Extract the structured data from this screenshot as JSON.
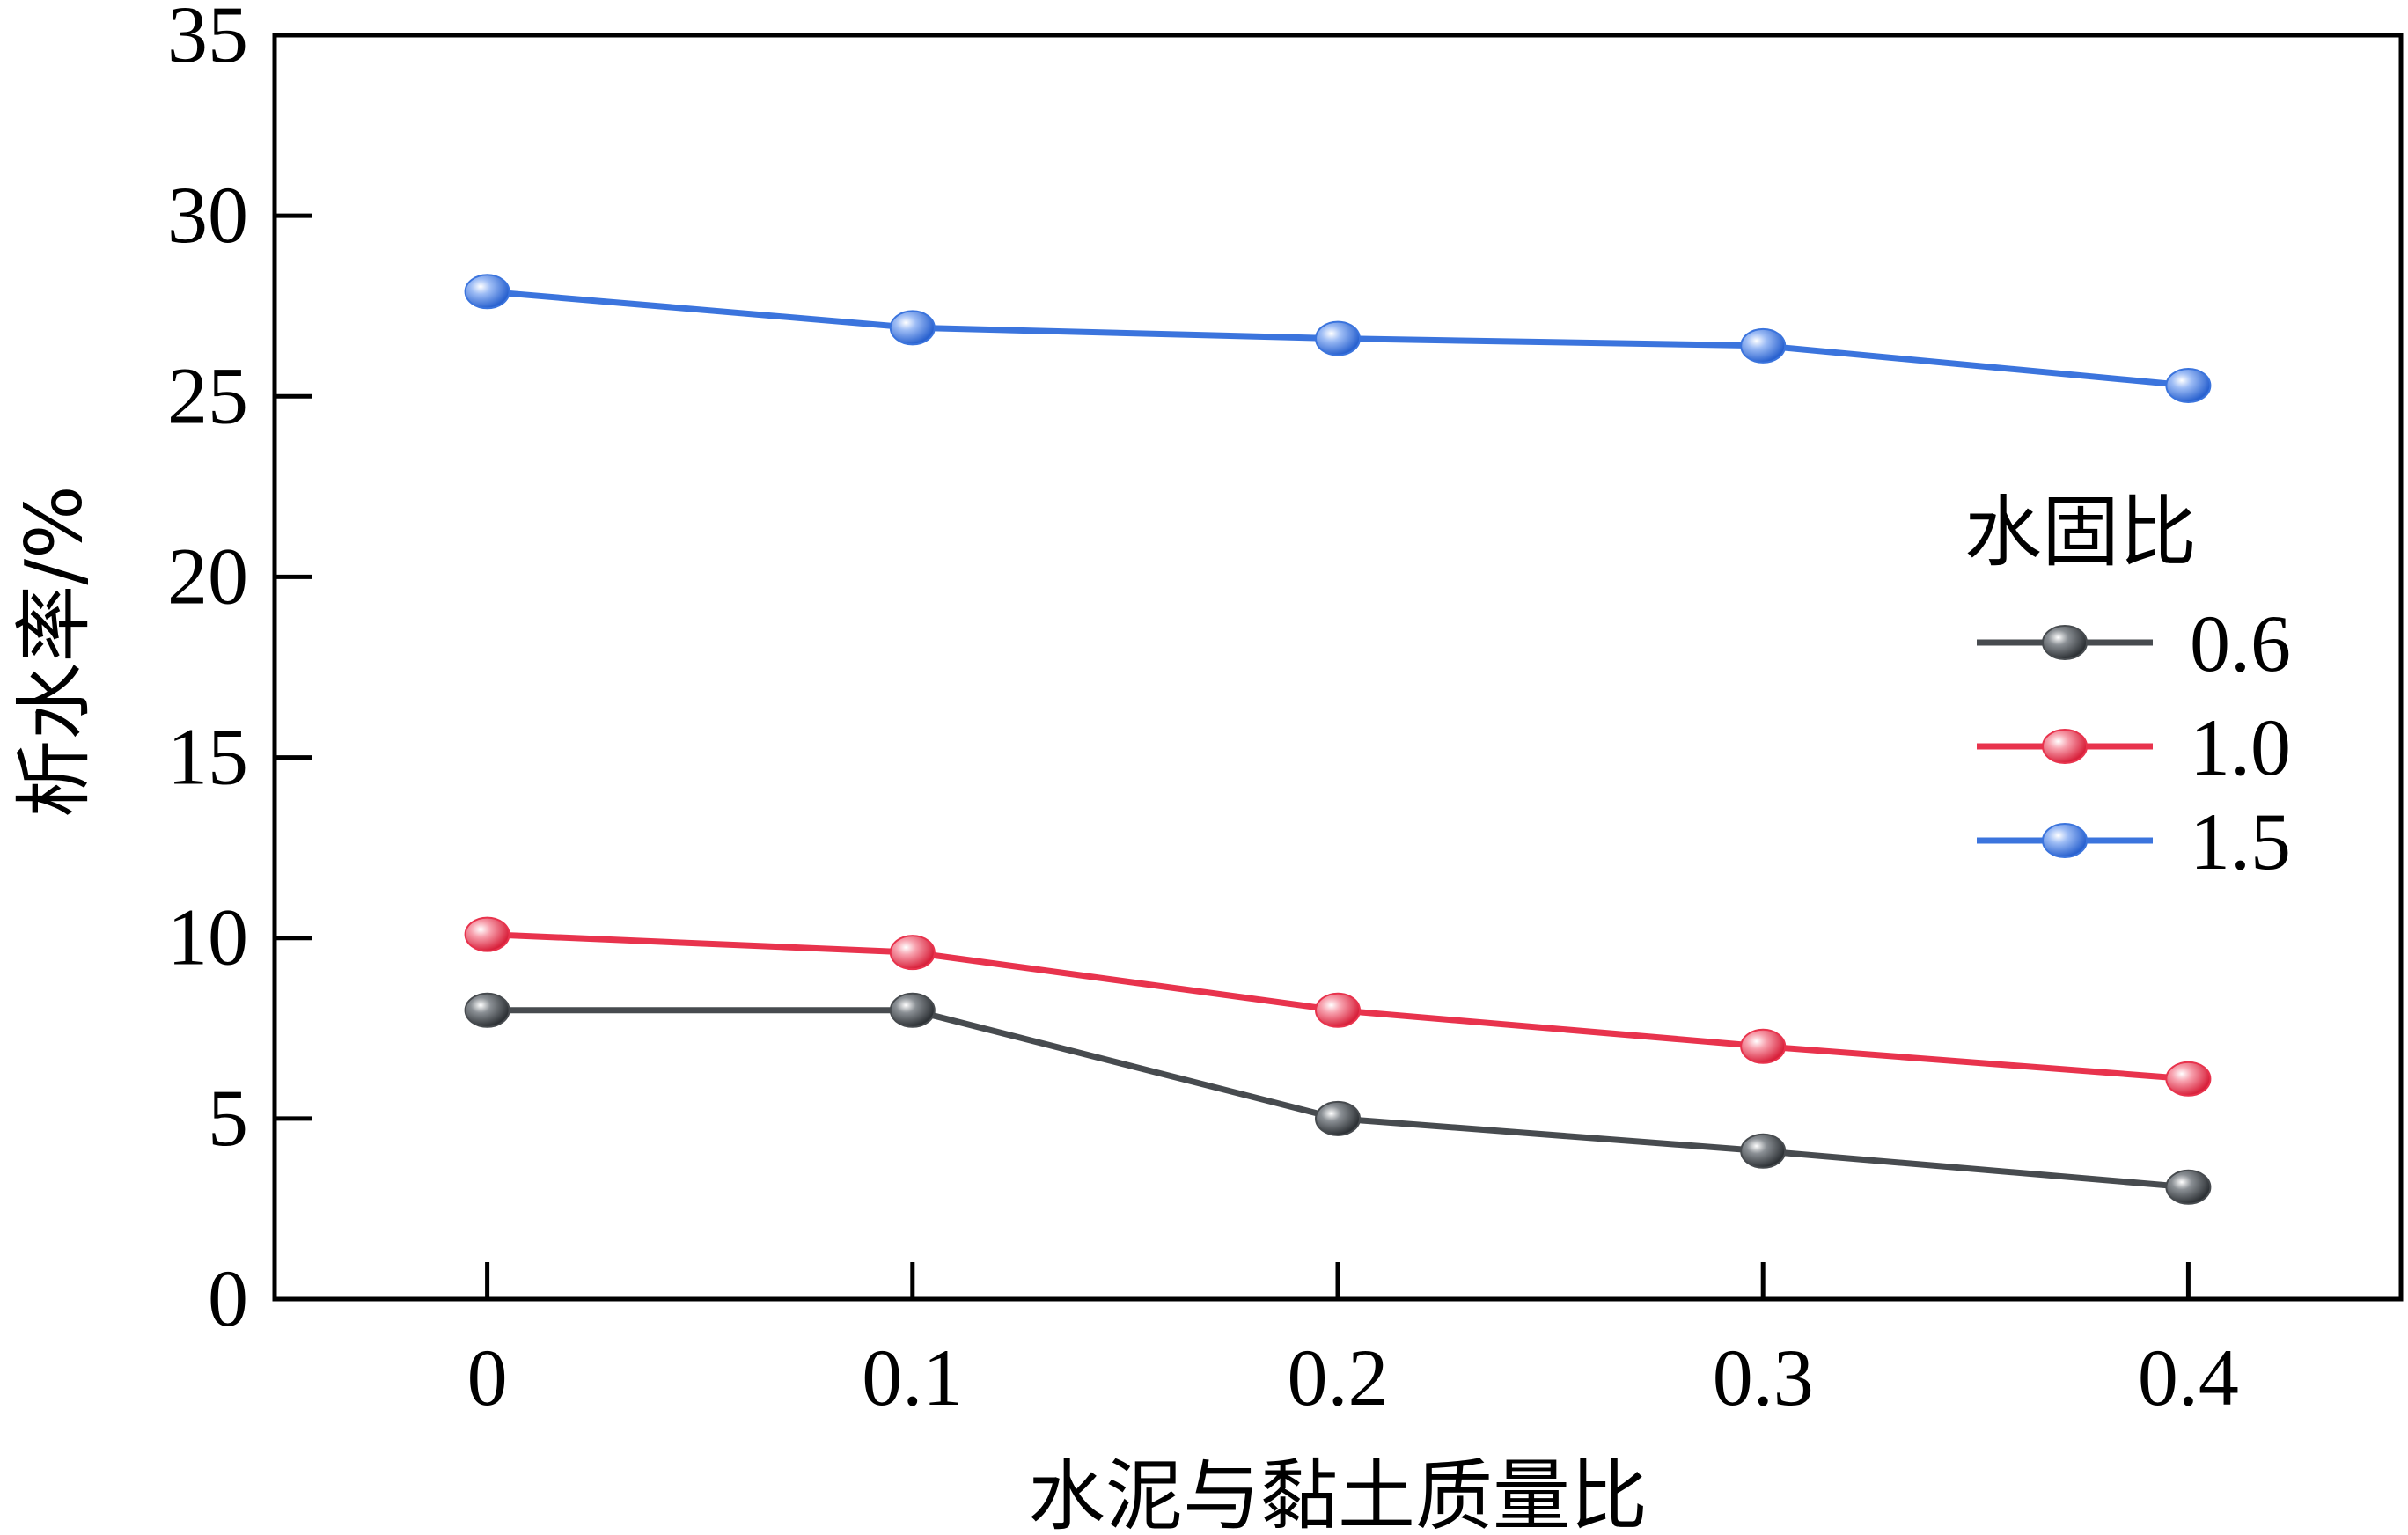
{
  "chart_data": {
    "type": "line",
    "xlabel": "水泥与黏土质量比",
    "ylabel": "析水率/%",
    "x": [
      0,
      0.1,
      0.2,
      0.3,
      0.4
    ],
    "x_tick_labels": [
      "0",
      "0.1",
      "0.2",
      "0.3",
      "0.4"
    ],
    "xlim": [
      -0.05,
      0.45
    ],
    "ylim": [
      0,
      35
    ],
    "y_ticks": [
      0,
      5,
      10,
      15,
      20,
      25,
      30,
      35
    ],
    "y_tick_labels": [
      "0",
      "5",
      "10",
      "15",
      "20",
      "25",
      "30",
      "35"
    ],
    "grid": false,
    "legend": {
      "title": "水固比",
      "placement": "right"
    },
    "series": [
      {
        "name": "0.6",
        "color": "#474b4f",
        "values": [
          8.0,
          8.0,
          5.0,
          4.1,
          3.1
        ]
      },
      {
        "name": "1.0",
        "color": "#e8334d",
        "values": [
          10.1,
          9.6,
          8.0,
          7.0,
          6.1
        ]
      },
      {
        "name": "1.5",
        "color": "#3b74dd",
        "values": [
          27.9,
          26.9,
          26.6,
          26.4,
          25.3
        ]
      }
    ]
  }
}
